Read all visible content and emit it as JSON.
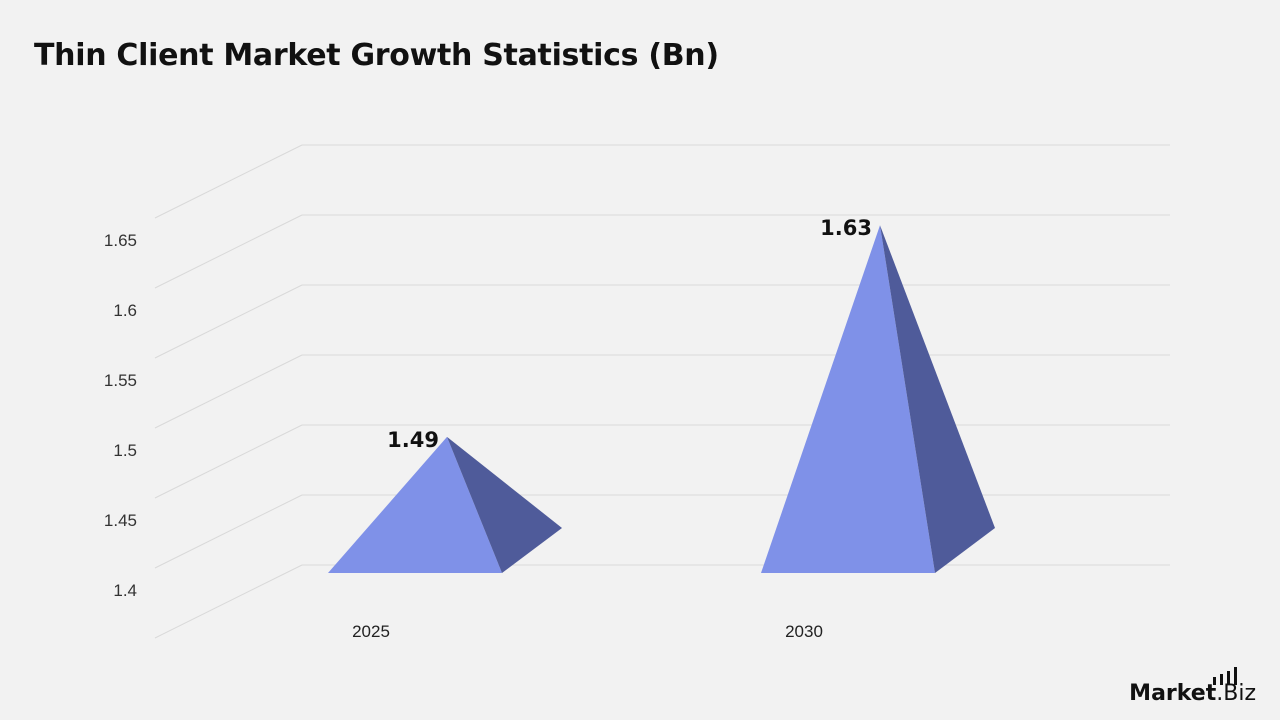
{
  "chart_data": {
    "type": "bar",
    "title": "Thin Client Market Growth Statistics (Bn)",
    "categories": [
      "2025",
      "2030"
    ],
    "values": [
      1.49,
      1.63
    ],
    "data_labels": [
      "1.49",
      "1.63"
    ],
    "ylim": [
      1.4,
      1.65
    ],
    "yticks": [
      "1.4",
      "1.45",
      "1.5",
      "1.55",
      "1.6",
      "1.65"
    ],
    "xlabel": "",
    "ylabel": "",
    "grid": true,
    "legend": "none",
    "shape": "pyramid",
    "colors": {
      "face": "#7f91e8",
      "side": "#4f5b9a",
      "grid": "#d9d9d9"
    }
  },
  "logo": {
    "brand": "Market",
    "suffix": ".Biz"
  }
}
